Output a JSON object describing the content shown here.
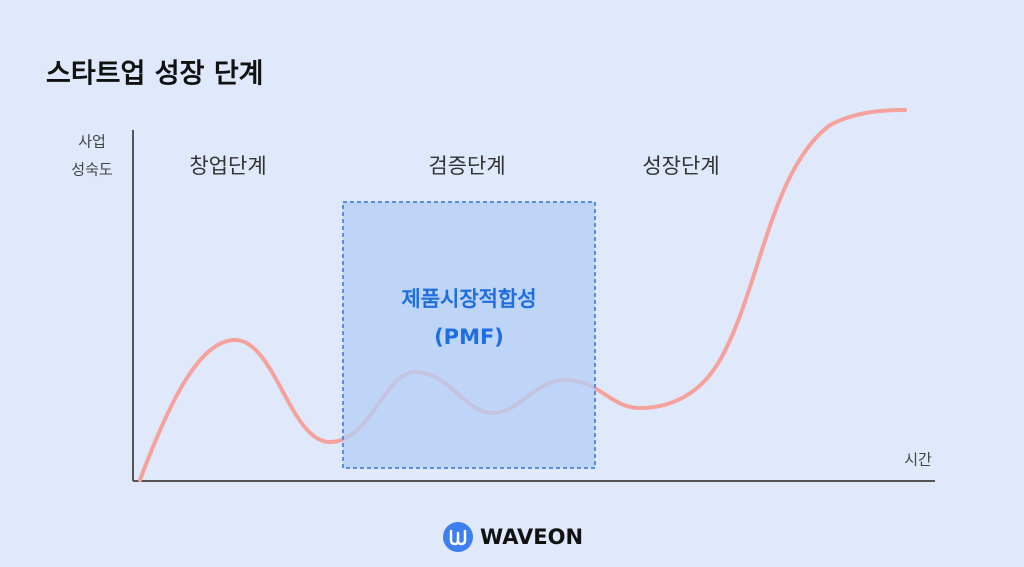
{
  "title": "스타트업 성장 단계",
  "y_axis_label": [
    "사업",
    "성숙도"
  ],
  "x_axis_label": "시간",
  "stages": [
    "창업단계",
    "검증단계",
    "성장단계"
  ],
  "highlight": {
    "label": "제품시장적합성",
    "sublabel": "(PMF)"
  },
  "logo": "WAVEON"
}
